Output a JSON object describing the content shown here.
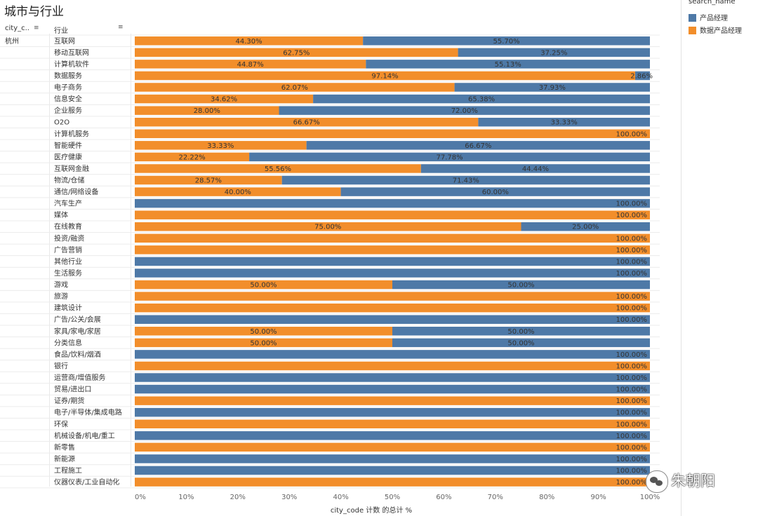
{
  "page_title": "城市与行业",
  "headers": {
    "city": "city_c..",
    "industry": "行业"
  },
  "city": "杭州",
  "legend": {
    "title": "search_name",
    "items": [
      {
        "name": "产品经理",
        "color": "#4e79a7"
      },
      {
        "name": "数据产品经理",
        "color": "#f28e2b"
      }
    ]
  },
  "watermark": "朱朝阳",
  "chart_data": {
    "type": "bar",
    "orientation": "horizontal-stacked-100",
    "xlabel": "city_code 计数 的总计 %",
    "xlim": [
      0,
      100
    ],
    "xticks": [
      "0%",
      "10%",
      "20%",
      "30%",
      "40%",
      "50%",
      "60%",
      "70%",
      "80%",
      "90%",
      "100%"
    ],
    "categories": [
      "互联网",
      "移动互联网",
      "计算机软件",
      "数据服务",
      "电子商务",
      "信息安全",
      "企业服务",
      "O2O",
      "计算机服务",
      "智能硬件",
      "医疗健康",
      "互联网金融",
      "物流/仓储",
      "通信/网络设备",
      "汽车生产",
      "媒体",
      "在线教育",
      "投资/融资",
      "广告营销",
      "其他行业",
      "生活服务",
      "游戏",
      "旅游",
      "建筑设计",
      "广告/公关/会展",
      "家具/家电/家居",
      "分类信息",
      "食品/饮料/烟酒",
      "银行",
      "运营商/增值服务",
      "贸易/进出口",
      "证券/期货",
      "电子/半导体/集成电路",
      "环保",
      "机械设备/机电/重工",
      "新零售",
      "新能源",
      "工程施工",
      "仪器仪表/工业自动化"
    ],
    "series": [
      {
        "name": "数据产品经理",
        "color": "#f28e2b",
        "values": [
          44.3,
          62.75,
          44.87,
          97.14,
          62.07,
          34.62,
          28.0,
          66.67,
          100,
          33.33,
          22.22,
          55.56,
          28.57,
          40.0,
          0,
          100,
          75.0,
          100,
          100,
          0,
          0,
          50.0,
          100,
          100,
          0,
          50.0,
          50.0,
          0,
          100,
          0,
          0,
          100,
          0,
          100,
          0,
          100,
          0,
          0,
          100
        ]
      },
      {
        "name": "产品经理",
        "color": "#4e79a7",
        "values": [
          55.7,
          37.25,
          55.13,
          2.86,
          37.93,
          65.38,
          72.0,
          33.33,
          0,
          66.67,
          77.78,
          44.44,
          71.43,
          60.0,
          100,
          0,
          25.0,
          0,
          0,
          100,
          100,
          50.0,
          0,
          0,
          100,
          50.0,
          50.0,
          100,
          0,
          100,
          100,
          0,
          100,
          0,
          100,
          0,
          100,
          100,
          0
        ]
      }
    ],
    "data_labels": [
      [
        "44.30%",
        "55.70%"
      ],
      [
        "62.75%",
        "37.25%"
      ],
      [
        "44.87%",
        "55.13%"
      ],
      [
        "97.14%",
        "2.86%"
      ],
      [
        "62.07%",
        "37.93%"
      ],
      [
        "34.62%",
        "65.38%"
      ],
      [
        "28.00%",
        "72.00%"
      ],
      [
        "66.67%",
        "33.33%"
      ],
      [
        "100.00%"
      ],
      [
        "33.33%",
        "66.67%"
      ],
      [
        "22.22%",
        "77.78%"
      ],
      [
        "55.56%",
        "44.44%"
      ],
      [
        "28.57%",
        "71.43%"
      ],
      [
        "40.00%",
        "60.00%"
      ],
      [
        "100.00%"
      ],
      [
        "100.00%"
      ],
      [
        "75.00%",
        "25.00%"
      ],
      [
        "100.00%"
      ],
      [
        "100.00%"
      ],
      [
        "100.00%"
      ],
      [
        "100.00%"
      ],
      [
        "50.00%",
        "50.00%"
      ],
      [
        "100.00%"
      ],
      [
        "100.00%"
      ],
      [
        "100.00%"
      ],
      [
        "50.00%",
        "50.00%"
      ],
      [
        "50.00%",
        "50.00%"
      ],
      [
        "100.00%"
      ],
      [
        "100.00%"
      ],
      [
        "100.00%"
      ],
      [
        "100.00%"
      ],
      [
        "100.00%"
      ],
      [
        "100.00%"
      ],
      [
        "100.00%"
      ],
      [
        "100.00%"
      ],
      [
        "100.00%"
      ],
      [
        "100.00%"
      ],
      [
        "100.00%"
      ],
      [
        "100.00%"
      ]
    ],
    "grid": false,
    "legend_position": "right"
  }
}
